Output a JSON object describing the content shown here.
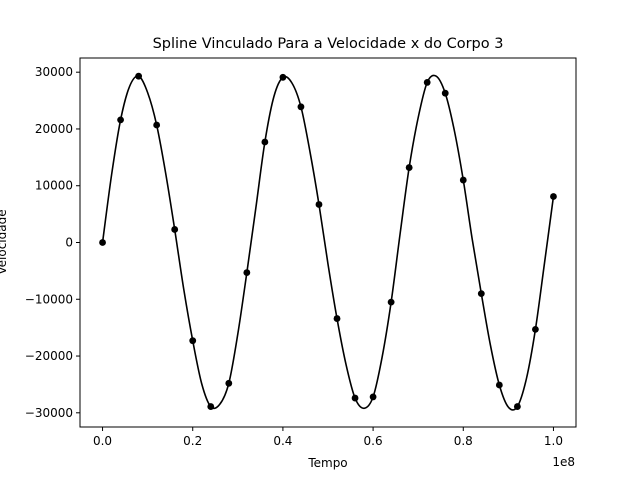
{
  "chart_data": {
    "type": "line",
    "title": "Spline Vinculado Para a Velocidade x do Corpo 3",
    "xlabel": "Tempo",
    "ylabel": "Velocidade",
    "x_offset_label": "1e8",
    "xlim": [
      -0.05,
      1.05
    ],
    "ylim": [
      -32500,
      32500
    ],
    "x_ticks": [
      0.0,
      0.2,
      0.4,
      0.6,
      0.8,
      1.0
    ],
    "x_tick_labels": [
      "0.0",
      "0.2",
      "0.4",
      "0.6",
      "0.8",
      "1.0"
    ],
    "y_ticks": [
      -30000,
      -20000,
      -10000,
      0,
      10000,
      20000,
      30000
    ],
    "y_tick_labels": [
      "−30000",
      "−20000",
      "−10000",
      "0",
      "10000",
      "20000",
      "30000"
    ],
    "grid": false,
    "colors": {
      "line": "#000000",
      "points": "#000000"
    },
    "series": [
      {
        "type": "scatter",
        "x": [
          0.0,
          0.04,
          0.08,
          0.12,
          0.16,
          0.2,
          0.24,
          0.28,
          0.32,
          0.36,
          0.4,
          0.44,
          0.48,
          0.52,
          0.56,
          0.6,
          0.64,
          0.68,
          0.72,
          0.76,
          0.8,
          0.84,
          0.88,
          0.92,
          0.96,
          1.0
        ],
        "y": [
          0,
          21600,
          29300,
          20700,
          2300,
          -17300,
          -28900,
          -24800,
          -5300,
          17700,
          29100,
          23900,
          6700,
          -13400,
          -27400,
          -27200,
          -10500,
          13200,
          28200,
          26300,
          11000,
          -9000,
          -25100,
          -28900,
          -15300,
          8100
        ]
      },
      {
        "type": "line",
        "x": [
          0.0,
          0.02,
          0.04,
          0.06,
          0.08,
          0.1,
          0.12,
          0.14,
          0.16,
          0.18,
          0.2,
          0.22,
          0.24,
          0.26,
          0.28,
          0.3,
          0.32,
          0.34,
          0.36,
          0.38,
          0.4,
          0.42,
          0.44,
          0.46,
          0.48,
          0.5,
          0.52,
          0.54,
          0.56,
          0.58,
          0.6,
          0.62,
          0.64,
          0.66,
          0.68,
          0.7,
          0.72,
          0.74,
          0.76,
          0.78,
          0.8,
          0.82,
          0.84,
          0.86,
          0.88,
          0.9,
          0.92,
          0.94,
          0.96,
          0.98,
          1.0
        ],
        "y": [
          0,
          11900,
          21600,
          27500,
          29300,
          26400,
          20700,
          12200,
          2300,
          -8200,
          -17300,
          -24900,
          -28900,
          -28500,
          -24800,
          -16100,
          -5300,
          6100,
          17700,
          25700,
          29100,
          28100,
          23900,
          16000,
          6700,
          -3800,
          -13400,
          -21500,
          -27400,
          -29200,
          -27200,
          -20200,
          -10500,
          1600,
          13200,
          22000,
          28200,
          29300,
          26300,
          19800,
          11000,
          500,
          -9000,
          -18000,
          -25100,
          -29000,
          -28900,
          -24000,
          -15300,
          -3700,
          8100
        ]
      }
    ]
  }
}
